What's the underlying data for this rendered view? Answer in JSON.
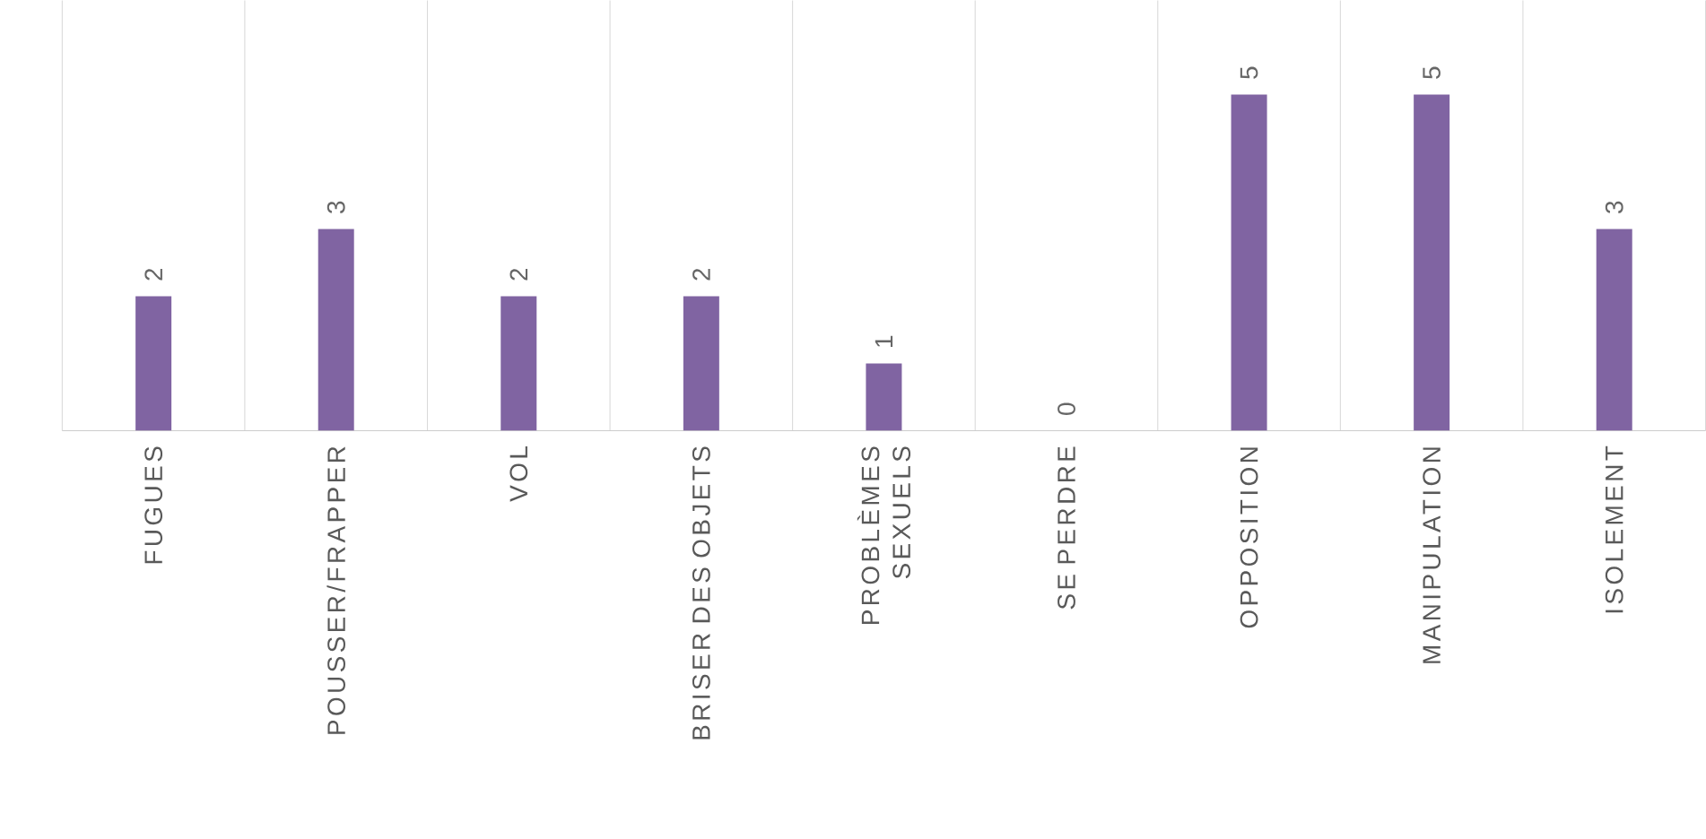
{
  "chart_data": {
    "type": "bar",
    "categories": [
      "FUGUES",
      "POUSSER/FRAPPER",
      "VOL",
      "BRISER DES OBJETS",
      "PROBLÈMES SEXUELS",
      "SE PERDRE",
      "OPPOSITION",
      "MANIPULATION",
      "ISOLEMENT"
    ],
    "values": [
      2,
      3,
      2,
      2,
      1,
      0,
      5,
      5,
      3
    ],
    "color": "#8064a2",
    "ylim": [
      0,
      6.4
    ],
    "grid": "x",
    "data_labels": true
  }
}
